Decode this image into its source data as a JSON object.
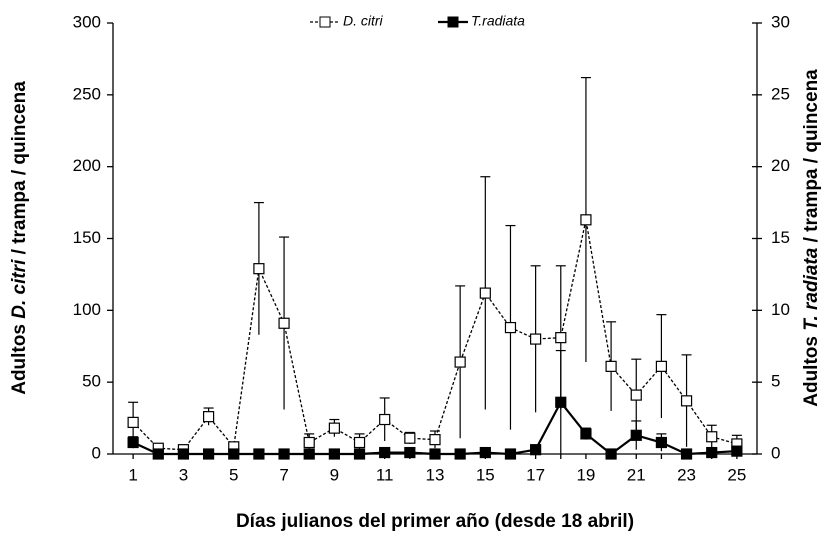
{
  "chart_data": {
    "type": "line",
    "xlabel": "Días julianos del primer año (desde 18 abril)",
    "ylabel": [
      "Adultos ",
      "D. citri",
      " / trampa / quincena"
    ],
    "y2label": [
      "Adultos ",
      "T. radiata",
      " / trampa / quincena"
    ],
    "x": [
      1,
      2,
      3,
      4,
      5,
      6,
      7,
      8,
      9,
      10,
      11,
      12,
      13,
      14,
      15,
      16,
      17,
      18,
      19,
      20,
      21,
      22,
      23,
      24,
      25
    ],
    "xlim": [
      0.2,
      25.8
    ],
    "xticks": [
      1,
      3,
      5,
      7,
      9,
      11,
      13,
      15,
      17,
      19,
      21,
      23,
      25
    ],
    "ylim": [
      0,
      300
    ],
    "yticks": [
      0,
      50,
      100,
      150,
      200,
      250,
      300
    ],
    "y2lim": [
      0,
      30
    ],
    "y2ticks": [
      0,
      5,
      10,
      15,
      20,
      25,
      30
    ],
    "legend": "top",
    "series": [
      {
        "name": "D. citri",
        "color": "#000000",
        "marker": "open",
        "dashed": true,
        "values": [
          22,
          4,
          3,
          26,
          5,
          129,
          91,
          8,
          18,
          8,
          24,
          11,
          10,
          64,
          112,
          88,
          80,
          81,
          163,
          61,
          41,
          61,
          37,
          12,
          7
        ],
        "errors": [
          14,
          2,
          2,
          6,
          2,
          46,
          60,
          6,
          6,
          6,
          15,
          4,
          6,
          53,
          81,
          71,
          51,
          50,
          99,
          31,
          25,
          36,
          32,
          8,
          6
        ]
      },
      {
        "name": "T.radiata",
        "color": "#000000",
        "marker": "filled",
        "dashed": false,
        "axis": "y2",
        "values": [
          0.8,
          0,
          0,
          0,
          0,
          0,
          0,
          0,
          0,
          0,
          0.1,
          0.1,
          0,
          0,
          0.1,
          0,
          0.3,
          3.6,
          1.4,
          0,
          1.3,
          0.8,
          0,
          0.1,
          0.2
        ],
        "errors": [
          0.4,
          0,
          0,
          0,
          0,
          0,
          0,
          0,
          0,
          0,
          0,
          0,
          0,
          0,
          0,
          0,
          0,
          3.6,
          0.4,
          0,
          1.0,
          0.6,
          0,
          0,
          0
        ]
      }
    ]
  }
}
